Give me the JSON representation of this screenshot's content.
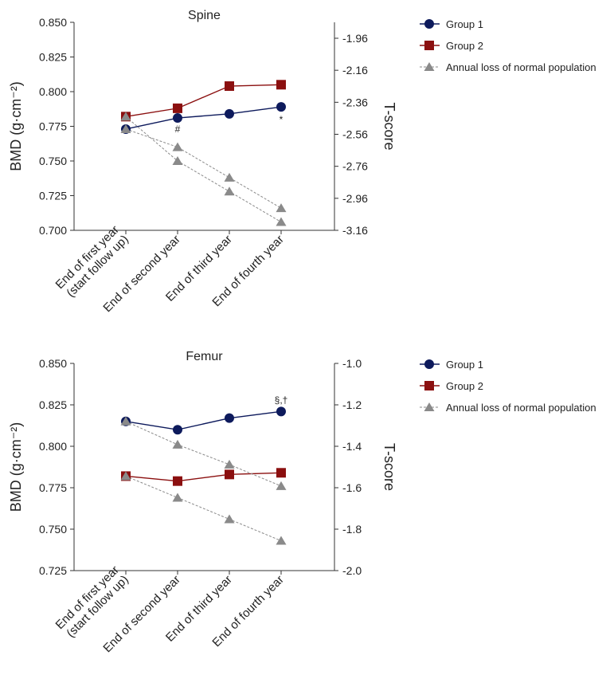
{
  "chart_data": [
    {
      "type": "line",
      "title": "Spine",
      "ylabel": "BMD (g·cm⁻²)",
      "y2label": "T-score",
      "categories": [
        "End of first year (start follow up)",
        "End of second year",
        "End of third year",
        "End of fourth year"
      ],
      "category_lines": [
        [
          "End of first year",
          "(start follow up)"
        ],
        [
          "End of second year"
        ],
        [
          "End of third year"
        ],
        [
          "End of fourth year"
        ]
      ],
      "ylim": [
        0.7,
        0.85
      ],
      "yticks": [
        "0.700",
        "0.725",
        "0.750",
        "0.775",
        "0.800",
        "0.825",
        "0.850"
      ],
      "y2ticks": [
        "-1.96",
        "-2.16",
        "-2.36",
        "-2.56",
        "-2.76",
        "-2.96",
        "-3.16"
      ],
      "series": [
        {
          "name": "Group 1",
          "marker": "circle",
          "color": "#0d1a5c",
          "values": [
            0.773,
            0.781,
            0.784,
            0.789
          ]
        },
        {
          "name": "Group 2",
          "marker": "square",
          "color": "#8b0f0f",
          "values": [
            0.782,
            0.788,
            0.804,
            0.805
          ]
        },
        {
          "name": "Annual loss of normal population",
          "marker": "triangle",
          "color": "#8a8a8a",
          "dashed": true,
          "values": [
            0.773,
            0.76,
            0.738,
            0.716
          ]
        },
        {
          "name": "Annual loss of normal population",
          "marker": "triangle",
          "color": "#8a8a8a",
          "dashed": true,
          "legend": false,
          "values": [
            0.782,
            0.75,
            0.728,
            0.706
          ]
        }
      ],
      "annotations": [
        {
          "text": "#",
          "category": 1,
          "value": 0.773
        },
        {
          "text": "*",
          "category": 3,
          "value": 0.78
        }
      ]
    },
    {
      "type": "line",
      "title": "Femur",
      "ylabel": "BMD (g·cm⁻²)",
      "y2label": "T-score",
      "categories": [
        "End of first year (start follow up)",
        "End of second year",
        "End of third year",
        "End of fourth year"
      ],
      "category_lines": [
        [
          "End of first year",
          "(start follow up)"
        ],
        [
          "End of second year"
        ],
        [
          "End of third year"
        ],
        [
          "End of fourth year"
        ]
      ],
      "ylim": [
        0.725,
        0.85
      ],
      "yticks": [
        "0.725",
        "0.750",
        "0.775",
        "0.800",
        "0.825",
        "0.850"
      ],
      "y2ticks": [
        "-2.0",
        "-1.8",
        "-1.6",
        "-1.4",
        "-1.2",
        "-1.0"
      ],
      "series": [
        {
          "name": "Group 1",
          "marker": "circle",
          "color": "#0d1a5c",
          "values": [
            0.815,
            0.81,
            0.817,
            0.821
          ]
        },
        {
          "name": "Group 2",
          "marker": "square",
          "color": "#8b0f0f",
          "values": [
            0.782,
            0.779,
            0.783,
            0.784
          ]
        },
        {
          "name": "Annual loss of normal population",
          "marker": "triangle",
          "color": "#8a8a8a",
          "dashed": true,
          "values": [
            0.815,
            0.801,
            0.789,
            0.776
          ]
        },
        {
          "name": "Annual loss of normal population",
          "marker": "triangle",
          "color": "#8a8a8a",
          "dashed": true,
          "legend": false,
          "values": [
            0.782,
            0.769,
            0.756,
            0.743
          ]
        }
      ],
      "annotations": [
        {
          "text": "§,†",
          "category": 3,
          "value": 0.828
        }
      ]
    }
  ]
}
